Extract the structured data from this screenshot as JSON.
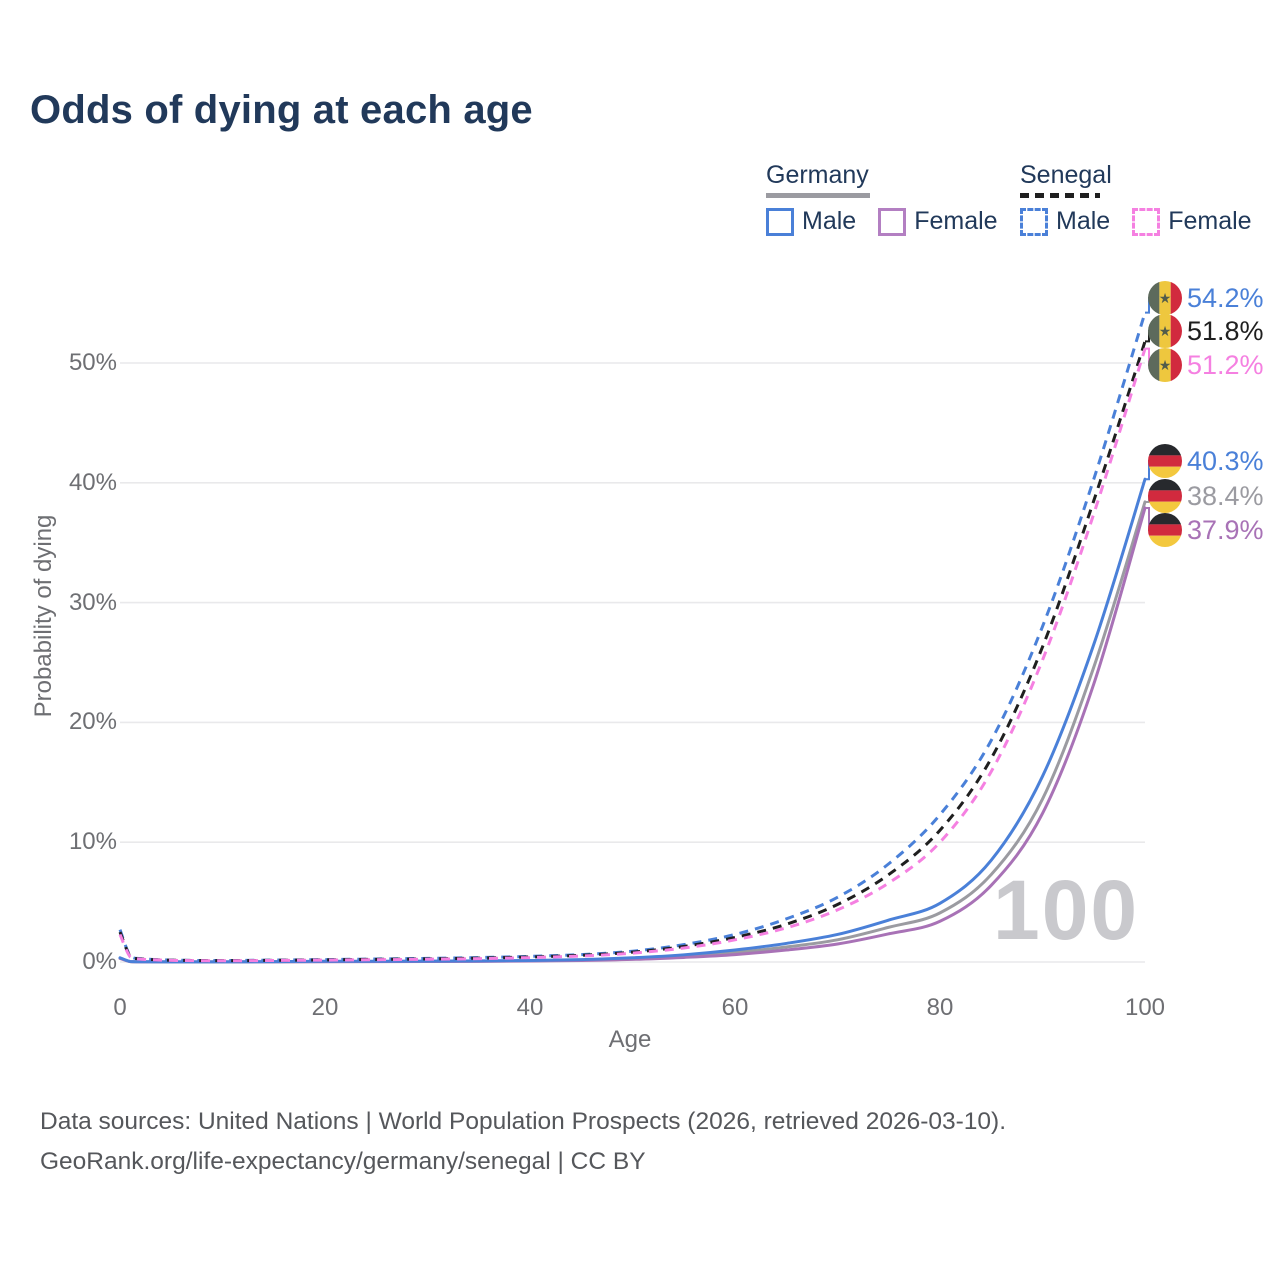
{
  "title": "Odds of dying at each age",
  "legend": {
    "germany": {
      "label": "Germany",
      "male": "Male",
      "female": "Female"
    },
    "senegal": {
      "label": "Senegal",
      "male": "Male",
      "female": "Female"
    }
  },
  "colors": {
    "male_blue": "#4a80d8",
    "germany_female_purple": "#a872b6",
    "germany_female_swatch": "#b37fc2",
    "germany_both_gray": "#9b9ba1",
    "senegal_both_black": "#1f1f1f",
    "senegal_female_pink": "#f580e1",
    "grid": "#e9e9eb",
    "axis_text": "#6e6f73",
    "title_navy": "#21395a",
    "watermark_gray": "#c9c9cd"
  },
  "chart_data": {
    "type": "line",
    "title": "Odds of dying at each age",
    "xlabel": "Age",
    "ylabel": "Probability of dying",
    "watermark": "100",
    "grid": true,
    "xlim": [
      0,
      100
    ],
    "ylim_pct": [
      0,
      56
    ],
    "x_ticks": [
      0,
      20,
      40,
      60,
      80,
      100
    ],
    "x_tick_labels": [
      "0",
      "20",
      "40",
      "60",
      "80",
      "100"
    ],
    "y_ticks_pct": [
      0,
      10,
      20,
      30,
      40,
      50
    ],
    "y_tick_labels": [
      "0%",
      "10%",
      "20%",
      "30%",
      "40%",
      "50%"
    ],
    "x": [
      0,
      1,
      2,
      5,
      10,
      15,
      20,
      25,
      30,
      35,
      40,
      45,
      50,
      55,
      60,
      65,
      70,
      75,
      80,
      85,
      90,
      95,
      100
    ],
    "series": [
      {
        "name": "Senegal Male",
        "country": "Senegal",
        "sex": "Male",
        "style": "dashed",
        "color": "#4a80d8",
        "end_label": "54.2%",
        "end_value_pct": 54.2,
        "values_pct": [
          2.7,
          0.5,
          0.28,
          0.16,
          0.12,
          0.16,
          0.2,
          0.25,
          0.3,
          0.37,
          0.47,
          0.62,
          0.9,
          1.45,
          2.3,
          3.6,
          5.4,
          8.2,
          12.3,
          18.5,
          28.0,
          40.3,
          54.2
        ]
      },
      {
        "name": "Senegal Both sexes",
        "country": "Senegal",
        "sex": "Both",
        "style": "dashed",
        "color": "#1f1f1f",
        "end_label": "51.8%",
        "end_value_pct": 51.8,
        "values_pct": [
          2.5,
          0.46,
          0.26,
          0.15,
          0.11,
          0.14,
          0.18,
          0.22,
          0.26,
          0.32,
          0.42,
          0.56,
          0.82,
          1.3,
          2.05,
          3.15,
          4.8,
          7.3,
          11.0,
          17.0,
          26.3,
          38.5,
          51.8
        ]
      },
      {
        "name": "Senegal Female",
        "country": "Senegal",
        "sex": "Female",
        "style": "dashed",
        "color": "#f580e1",
        "end_label": "51.2%",
        "end_value_pct": 51.2,
        "values_pct": [
          2.3,
          0.42,
          0.24,
          0.14,
          0.1,
          0.13,
          0.16,
          0.19,
          0.23,
          0.28,
          0.37,
          0.5,
          0.74,
          1.17,
          1.85,
          2.85,
          4.35,
          6.6,
          10.0,
          15.9,
          25.2,
          37.4,
          51.2
        ]
      },
      {
        "name": "Germany Male",
        "country": "Germany",
        "sex": "Male",
        "style": "solid",
        "color": "#4a80d8",
        "end_label": "40.3%",
        "end_value_pct": 40.3,
        "values_pct": [
          0.35,
          0.04,
          0.02,
          0.01,
          0.015,
          0.03,
          0.06,
          0.06,
          0.07,
          0.09,
          0.13,
          0.2,
          0.35,
          0.6,
          1.0,
          1.55,
          2.3,
          3.5,
          4.9,
          8.5,
          15.5,
          26.5,
          40.3
        ]
      },
      {
        "name": "Germany Both sexes",
        "country": "Germany",
        "sex": "Both",
        "style": "solid",
        "color": "#9b9ba1",
        "end_label": "38.4%",
        "end_value_pct": 38.4,
        "values_pct": [
          0.33,
          0.035,
          0.018,
          0.01,
          0.012,
          0.022,
          0.045,
          0.045,
          0.055,
          0.07,
          0.1,
          0.16,
          0.28,
          0.48,
          0.8,
          1.25,
          1.85,
          2.9,
          4.1,
          7.3,
          13.6,
          24.6,
          38.4
        ]
      },
      {
        "name": "Germany Female",
        "country": "Germany",
        "sex": "Female",
        "style": "solid",
        "color": "#a872b6",
        "end_label": "37.9%",
        "end_value_pct": 37.9,
        "values_pct": [
          0.3,
          0.03,
          0.015,
          0.008,
          0.01,
          0.015,
          0.025,
          0.03,
          0.04,
          0.055,
          0.08,
          0.13,
          0.22,
          0.38,
          0.62,
          1.0,
          1.5,
          2.35,
          3.4,
          6.4,
          12.4,
          23.2,
          37.9
        ]
      }
    ],
    "legend_position": "top-right"
  },
  "footer": {
    "line1": "Data sources: United Nations | World Population Prospects (2026, retrieved 2026-03-10).",
    "line2": "GeoRank.org/life-expectancy/germany/senegal | CC BY"
  }
}
